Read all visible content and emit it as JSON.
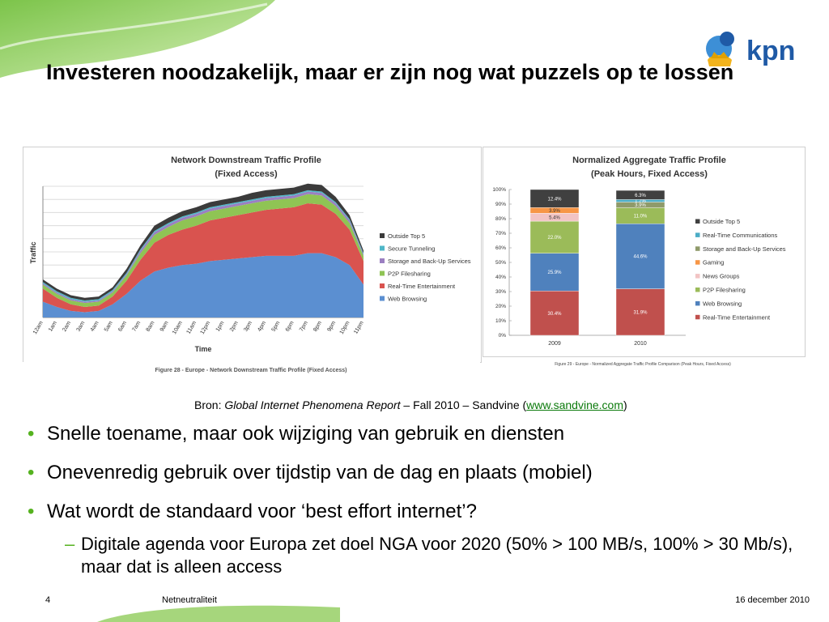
{
  "slide": {
    "title": "Investeren noodzakelijk, maar er zijn nog wat puzzels op te lossen",
    "logo_text": "kpn",
    "source": {
      "prefix": "Bron: ",
      "report": "Global Internet Phenomena Report",
      "middle": " – Fall 2010 – Sandvine (",
      "link": "www.sandvine.com",
      "suffix": ")"
    },
    "bullets": [
      "Snelle toename, maar ook wijziging van gebruik en diensten",
      "Onevenredig gebruik over tijdstip van de dag en plaats (mobiel)",
      "Wat wordt de standaard voor ‘best effort internet’?"
    ],
    "sub_bullet": "Digitale agenda voor Europa zet doel NGA voor 2020 (50% > 100 MB/s, 100% > 30 Mb/s), maar dat is alleen access",
    "bullet_glyph": "•",
    "sub_glyph": "–",
    "footer": {
      "page": "4",
      "title": "Netneutraliteit",
      "date": "16 december 2010"
    },
    "colors": {
      "accent_green": "#55b21f",
      "kpn_blue": "#1f5aa6",
      "link": "#0b7a0b"
    }
  },
  "chart_data": [
    {
      "type": "area",
      "stacked": true,
      "title": "Network Downstream Traffic Profile",
      "subtitle": "(Fixed Access)",
      "xlabel": "Time",
      "ylabel": "Traffic",
      "caption": "Figure 28 - Europe - Network Downstream Traffic Profile (Fixed Access)",
      "legend_position": "right",
      "grid": true,
      "ylim": [
        0,
        100
      ],
      "categories": [
        "12am",
        "1am",
        "2am",
        "3am",
        "4am",
        "5am",
        "6am",
        "7am",
        "8am",
        "9am",
        "10am",
        "11am",
        "12pm",
        "1pm",
        "2pm",
        "3pm",
        "4pm",
        "5pm",
        "6pm",
        "7pm",
        "8pm",
        "9pm",
        "10pm",
        "11pm"
      ],
      "series": [
        {
          "name": "Web Browsing",
          "color": "#5b8fd1",
          "values": [
            12,
            8,
            5,
            4,
            5,
            10,
            18,
            28,
            35,
            38,
            40,
            41,
            43,
            44,
            45,
            46,
            47,
            47,
            47,
            49,
            49,
            46,
            40,
            25
          ]
        },
        {
          "name": "Real-Time Entertainment",
          "color": "#d9534f",
          "values": [
            10,
            7,
            5,
            4,
            4,
            6,
            10,
            16,
            22,
            25,
            27,
            29,
            31,
            32,
            33,
            34,
            35,
            36,
            37,
            38,
            37,
            33,
            27,
            18
          ]
        },
        {
          "name": "P2P Filesharing",
          "color": "#8fc454",
          "values": [
            3,
            3,
            3,
            3,
            3,
            3,
            4,
            5,
            6,
            6,
            7,
            7,
            7,
            7,
            7,
            7,
            7,
            7,
            7,
            7,
            7,
            6,
            5,
            4
          ]
        },
        {
          "name": "Storage and Back-Up Services",
          "color": "#9b7fc1",
          "values": [
            1,
            1,
            1,
            1,
            1,
            1,
            1,
            2,
            2,
            2,
            2,
            2,
            2,
            2,
            2,
            2,
            2,
            2,
            2,
            2,
            2,
            2,
            2,
            1
          ]
        },
        {
          "name": "Secure Tunneling",
          "color": "#4fb7c8",
          "values": [
            1,
            1,
            1,
            1,
            1,
            1,
            1,
            1,
            1,
            1,
            1,
            1,
            1,
            1,
            1,
            1,
            1,
            1,
            1,
            1,
            1,
            1,
            1,
            1
          ]
        },
        {
          "name": "Outside Top 5",
          "color": "#3b3b3b",
          "values": [
            2,
            2,
            2,
            2,
            2,
            2,
            3,
            3,
            4,
            4,
            4,
            4,
            4,
            4,
            4,
            5,
            5,
            5,
            5,
            5,
            5,
            4,
            3,
            2
          ]
        }
      ]
    },
    {
      "type": "bar",
      "stacked": true,
      "title": "Normalized Aggregate Traffic Profile",
      "subtitle": "(Peak Hours, Fixed Access)",
      "caption": "Figure 29 - Europe - Normalized Aggregate Traffic Profile Comparison (Peak Hours, Fixed Access)",
      "legend_position": "right",
      "ylim": [
        0,
        100
      ],
      "yticks": [
        "0%",
        "10%",
        "20%",
        "30%",
        "40%",
        "50%",
        "60%",
        "70%",
        "80%",
        "90%",
        "100%"
      ],
      "categories": [
        "2009",
        "2010"
      ],
      "series": [
        {
          "name": "Real-Time Entertainment",
          "color": "#c0504d",
          "values": [
            30.4,
            31.9
          ],
          "labels": [
            "30.4%",
            "31.9%"
          ]
        },
        {
          "name": "Web Browsing",
          "color": "#4f81bd",
          "values": [
            25.9,
            44.6
          ],
          "labels": [
            "25.9%",
            "44.6%"
          ]
        },
        {
          "name": "P2P Filesharing",
          "color": "#9bbb59",
          "values": [
            22.0,
            11.0
          ],
          "labels": [
            "22.0%",
            "11.0%"
          ]
        },
        {
          "name": "News Groups",
          "color": "#f2c4c4",
          "values": [
            5.4,
            0
          ],
          "labels": [
            "5.4%",
            ""
          ]
        },
        {
          "name": "Gaming",
          "color": "#f79646",
          "values": [
            3.9,
            0
          ],
          "labels": [
            "3.9%",
            ""
          ]
        },
        {
          "name": "Storage and Back-Up Services",
          "color": "#8f9a6a",
          "values": [
            0,
            3.9
          ],
          "labels": [
            "",
            "3.9%"
          ]
        },
        {
          "name": "Real-Time Communications",
          "color": "#4bacc6",
          "values": [
            0,
            1.7
          ],
          "labels": [
            "",
            "1.7%"
          ]
        },
        {
          "name": "Outside Top 5",
          "color": "#404040",
          "values": [
            12.4,
            6.3
          ],
          "labels": [
            "12.4%",
            "6.3%"
          ]
        }
      ],
      "legend_order": [
        "Outside Top 5",
        "Real-Time Communications",
        "Storage and Back-Up Services",
        "Gaming",
        "News Groups",
        "P2P Filesharing",
        "Web Browsing",
        "Real-Time Entertainment"
      ]
    }
  ]
}
